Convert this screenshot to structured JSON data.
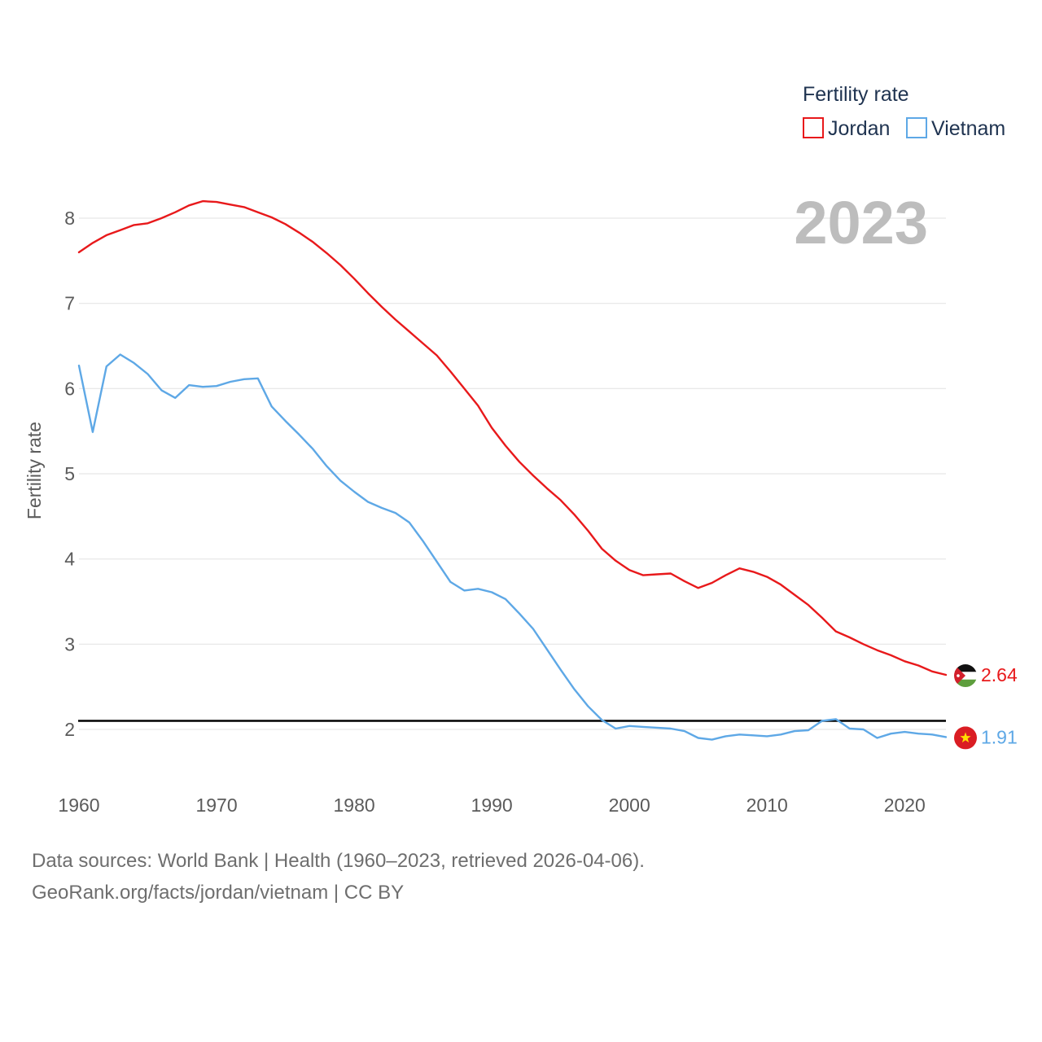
{
  "chart_data": {
    "type": "line",
    "title": "",
    "xlabel": "",
    "ylabel": "Fertility rate",
    "xlim": [
      1960,
      2023
    ],
    "ylim": [
      1.4,
      8.4
    ],
    "x_ticks": [
      1960,
      1970,
      1980,
      1990,
      2000,
      2010,
      2020
    ],
    "y_ticks": [
      2,
      3,
      4,
      5,
      6,
      7,
      8
    ],
    "current_year": "2023",
    "legend": {
      "title": "Fertility rate",
      "position": "top-right"
    },
    "reference_line": {
      "y": 2.1
    },
    "x": [
      1960,
      1961,
      1962,
      1963,
      1964,
      1965,
      1966,
      1967,
      1968,
      1969,
      1970,
      1971,
      1972,
      1973,
      1974,
      1975,
      1976,
      1977,
      1978,
      1979,
      1980,
      1981,
      1982,
      1983,
      1984,
      1985,
      1986,
      1987,
      1988,
      1989,
      1990,
      1991,
      1992,
      1993,
      1994,
      1995,
      1996,
      1997,
      1998,
      1999,
      2000,
      2001,
      2002,
      2003,
      2004,
      2005,
      2006,
      2007,
      2008,
      2009,
      2010,
      2011,
      2012,
      2013,
      2014,
      2015,
      2016,
      2017,
      2018,
      2019,
      2020,
      2021,
      2022,
      2023
    ],
    "series": [
      {
        "name": "Jordan",
        "color": "#e8191b",
        "end_label": "2.64",
        "values": [
          7.6,
          7.71,
          7.8,
          7.86,
          7.92,
          7.94,
          8.0,
          8.07,
          8.15,
          8.2,
          8.19,
          8.16,
          8.13,
          8.07,
          8.01,
          7.93,
          7.83,
          7.72,
          7.59,
          7.45,
          7.29,
          7.12,
          6.96,
          6.81,
          6.67,
          6.53,
          6.39,
          6.2,
          6.0,
          5.8,
          5.54,
          5.33,
          5.14,
          4.98,
          4.83,
          4.69,
          4.52,
          4.33,
          4.12,
          3.98,
          3.87,
          3.81,
          3.82,
          3.83,
          3.74,
          3.66,
          3.72,
          3.81,
          3.89,
          3.85,
          3.79,
          3.7,
          3.58,
          3.46,
          3.31,
          3.15,
          3.08,
          3.0,
          2.93,
          2.87,
          2.8,
          2.75,
          2.68,
          2.64
        ]
      },
      {
        "name": "Vietnam",
        "color": "#5ea8e6",
        "end_label": "1.91",
        "values": [
          6.27,
          5.49,
          6.26,
          6.4,
          6.3,
          6.17,
          5.98,
          5.89,
          6.04,
          6.02,
          6.03,
          6.08,
          6.11,
          6.12,
          5.79,
          5.62,
          5.46,
          5.29,
          5.09,
          4.92,
          4.79,
          4.67,
          4.6,
          4.54,
          4.43,
          4.21,
          3.97,
          3.73,
          3.63,
          3.65,
          3.61,
          3.53,
          3.36,
          3.18,
          2.94,
          2.7,
          2.47,
          2.27,
          2.11,
          2.01,
          2.04,
          2.03,
          2.02,
          2.01,
          1.98,
          1.9,
          1.88,
          1.92,
          1.94,
          1.93,
          1.92,
          1.94,
          1.98,
          1.99,
          2.1,
          2.12,
          2.01,
          2.0,
          1.9,
          1.95,
          1.97,
          1.95,
          1.94,
          1.91
        ]
      }
    ]
  },
  "footer": {
    "line1": "Data sources: World Bank | Health (1960–2023, retrieved 2026-04-06).",
    "line2": "GeoRank.org/facts/jordan/vietnam | CC BY"
  }
}
